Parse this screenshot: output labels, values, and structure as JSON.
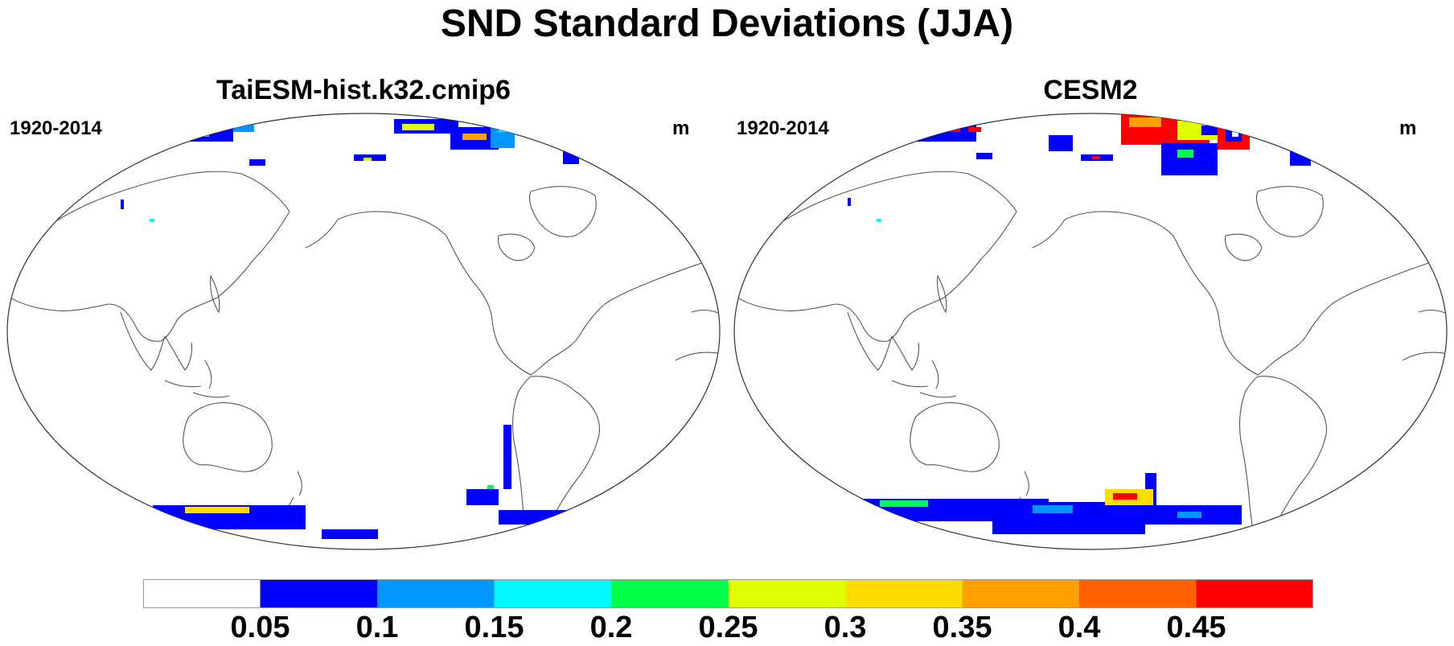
{
  "figure": {
    "title": "SND Standard Deviations (JJA)"
  },
  "panels": [
    {
      "title": "TaiESM-hist.k32.cmip6",
      "period": "1920-2014",
      "units": "m"
    },
    {
      "title": "CESM2",
      "period": "1920-2014",
      "units": "m"
    }
  ],
  "colorbar": {
    "labels": [
      "0.05",
      "0.1",
      "0.15",
      "0.2",
      "0.25",
      "0.3",
      "0.35",
      "0.4",
      "0.45"
    ],
    "colors": [
      "#ffffff",
      "#0000ff",
      "#0096ff",
      "#00faff",
      "#00ff48",
      "#e0ff00",
      "#ffdc00",
      "#ffa000",
      "#ff6000",
      "#ff0000"
    ]
  }
}
